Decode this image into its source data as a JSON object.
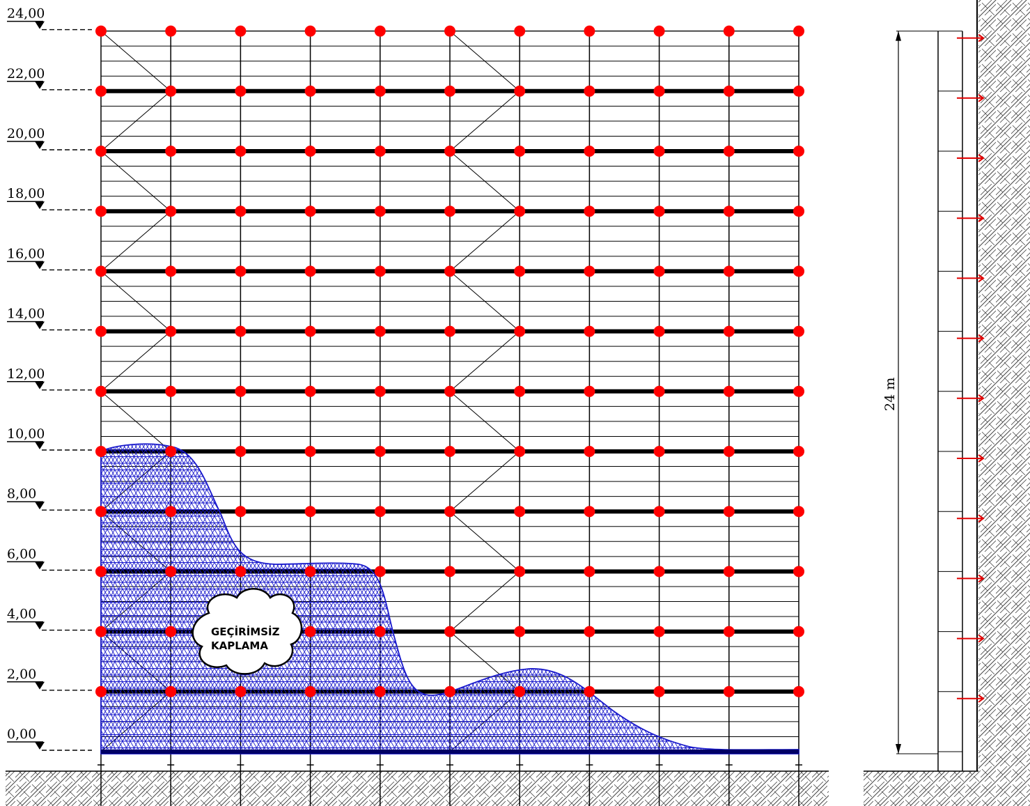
{
  "levels": [
    "0,00",
    "2,00",
    "4,00",
    "6,00",
    "8,00",
    "10,00",
    "12,00",
    "14,00",
    "16,00",
    "18,00",
    "20,00",
    "22,00",
    "24,00"
  ],
  "total_height_label": "24 m",
  "membrane_label_line1": "GEÇİRİMSİZ",
  "membrane_label_line2": "KAPLAMA",
  "colors": {
    "node": "#ff0000",
    "membrane": "#1a1acc",
    "anchor": "#e00000",
    "line": "#000000"
  }
}
